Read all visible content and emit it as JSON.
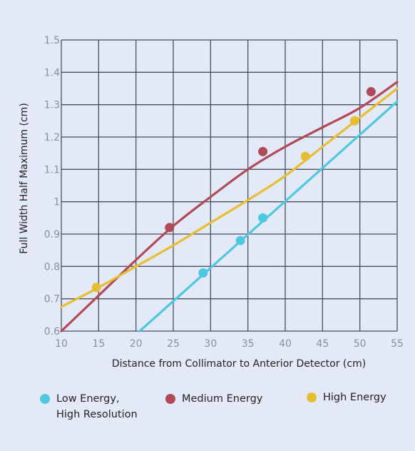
{
  "chart_data": {
    "type": "line",
    "xlabel": "Distance from Collimator to Anterior Detector (cm)",
    "ylabel": "Full Width Half Maximum (cm)",
    "xlim": [
      10,
      55
    ],
    "ylim": [
      0.6,
      1.5
    ],
    "x_ticks": [
      "10",
      "15",
      "20",
      "25",
      "30",
      "35",
      "40",
      "45",
      "50",
      "55"
    ],
    "y_ticks": [
      "0.6",
      "0.7",
      "0.8",
      "0.9",
      "1",
      "1.1",
      "1.2",
      "1.3",
      "1.4",
      "1.5"
    ],
    "grid": true,
    "legend_position": "bottom",
    "series": [
      {
        "name": "Low Energy,\nHigh Resolution",
        "color": "#4ec8df",
        "line": [
          [
            20.5,
            0.6
          ],
          [
            55,
            1.31
          ]
        ],
        "points": [
          [
            29,
            0.78
          ],
          [
            34,
            0.88
          ],
          [
            37,
            0.95
          ]
        ]
      },
      {
        "name": "Medium Energy",
        "color": "#b04a57",
        "line": [
          [
            10,
            0.6
          ],
          [
            15,
            0.71
          ],
          [
            20,
            0.82
          ],
          [
            25,
            0.925
          ],
          [
            30,
            1.015
          ],
          [
            35,
            1.1
          ],
          [
            40,
            1.17
          ],
          [
            45,
            1.23
          ],
          [
            50,
            1.29
          ],
          [
            55,
            1.37
          ]
        ],
        "points": [
          [
            24.5,
            0.92
          ],
          [
            37,
            1.155
          ],
          [
            51.5,
            1.34
          ]
        ]
      },
      {
        "name": "High Energy",
        "color": "#e5be36",
        "line": [
          [
            10,
            0.675
          ],
          [
            15,
            0.735
          ],
          [
            20,
            0.8
          ],
          [
            25,
            0.865
          ],
          [
            30,
            0.935
          ],
          [
            35,
            1.005
          ],
          [
            40,
            1.08
          ],
          [
            45,
            1.17
          ],
          [
            50,
            1.26
          ],
          [
            55,
            1.35
          ]
        ],
        "points": [
          [
            14.7,
            0.735
          ],
          [
            42.7,
            1.14
          ],
          [
            49.3,
            1.25
          ]
        ]
      }
    ]
  }
}
